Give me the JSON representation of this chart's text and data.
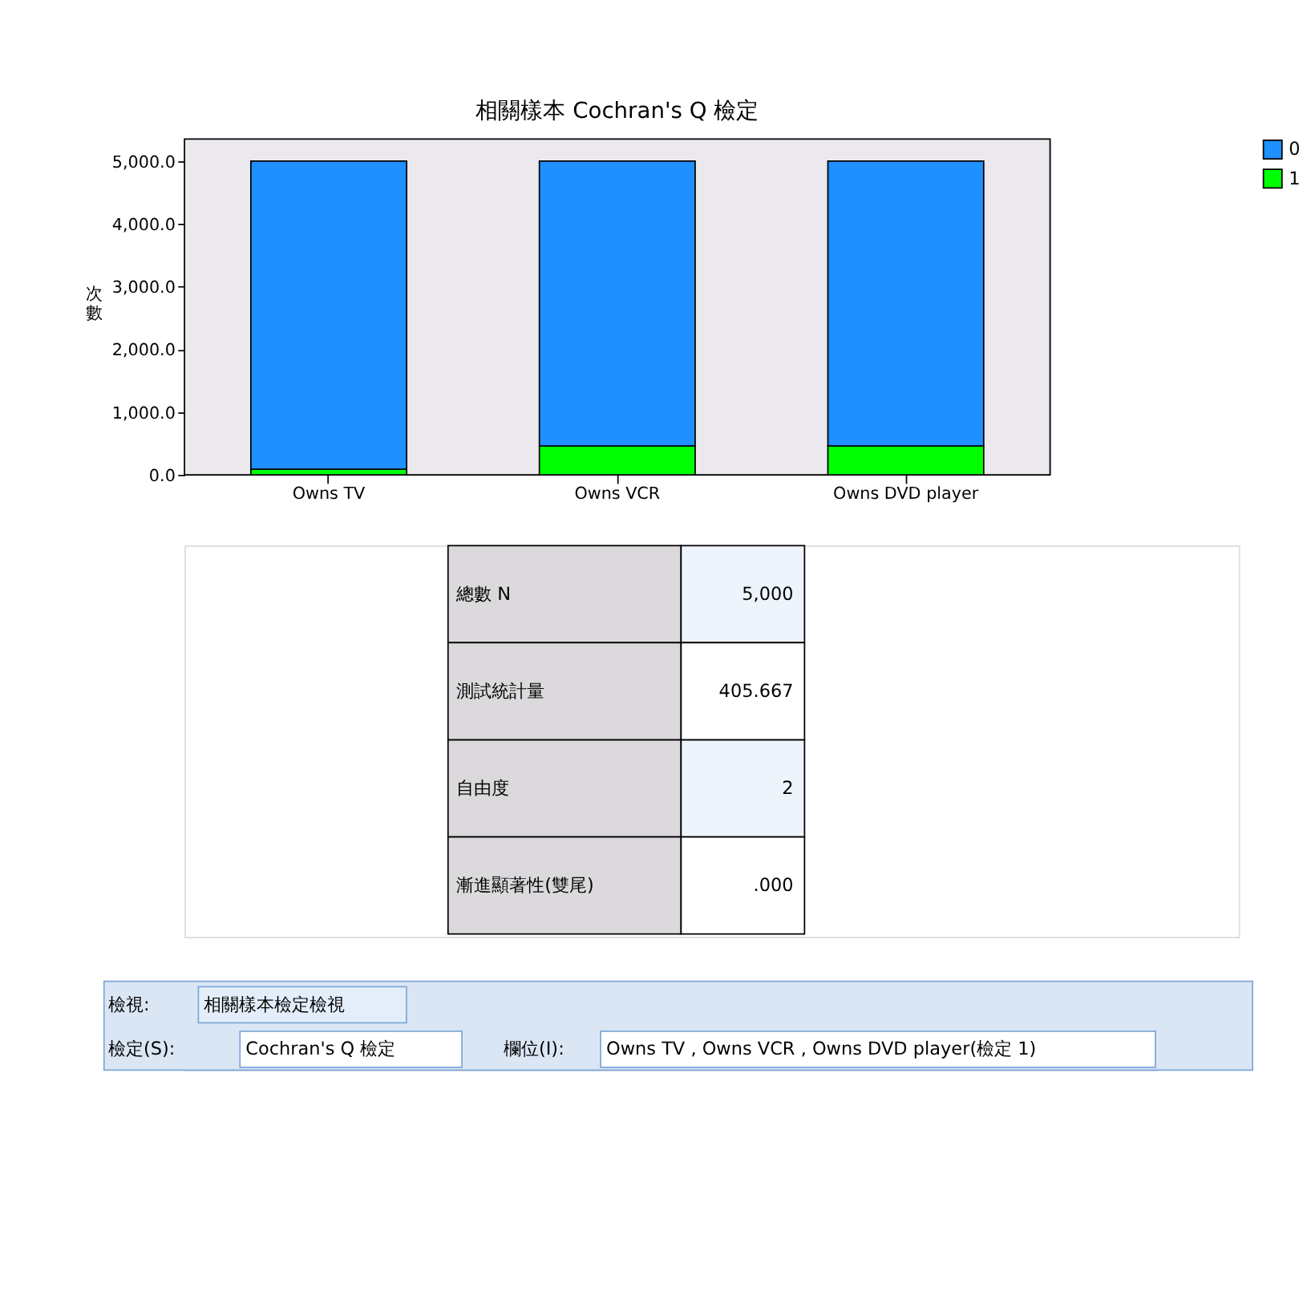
{
  "chart_data": {
    "type": "bar",
    "title": "相關樣本 Cochran's Q 檢定",
    "ylabel": "次數",
    "categories": [
      "Owns TV",
      "Owns VCR",
      "Owns DVD player"
    ],
    "stacked": true,
    "series": [
      {
        "name": "1",
        "color": "#00ff00",
        "values": [
          90,
          460,
          460
        ]
      },
      {
        "name": "0",
        "color": "#1e90ff",
        "values": [
          4910,
          4540,
          4540
        ]
      }
    ],
    "ylim": [
      0,
      5350
    ],
    "yticks": [
      {
        "value": 0,
        "label": "0.0"
      },
      {
        "value": 1000,
        "label": "1,000.0"
      },
      {
        "value": 2000,
        "label": "2,000.0"
      },
      {
        "value": 3000,
        "label": "3,000.0"
      },
      {
        "value": 4000,
        "label": "4,000.0"
      },
      {
        "value": 5000,
        "label": "5,000.0"
      }
    ],
    "grid": false,
    "legend": "top right",
    "annotations": [
      "總數 N",
      "5,000",
      "測試統計量",
      "405.667",
      "自由度",
      "2",
      "漸進顯著性(雙尾)",
      ".000",
      "檢視:",
      "相關樣本檢定檢視",
      "檢定(S):",
      "Cochran's Q 檢定",
      "欄位(I):",
      "Owns TV , Owns VCR , Owns DVD player(檢定 1)"
    ]
  }
}
